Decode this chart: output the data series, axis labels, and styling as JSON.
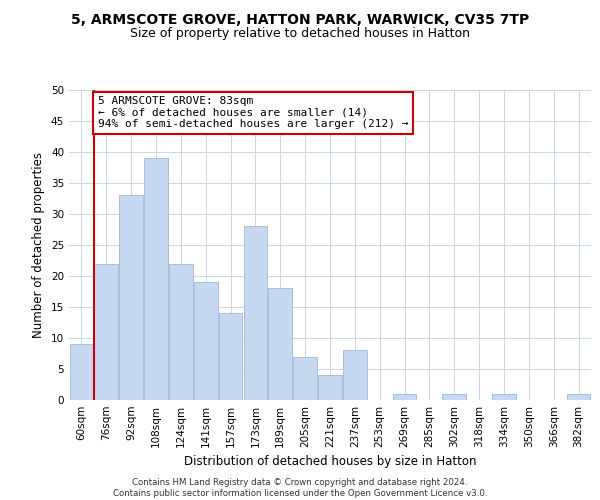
{
  "title": "5, ARMSCOTE GROVE, HATTON PARK, WARWICK, CV35 7TP",
  "subtitle": "Size of property relative to detached houses in Hatton",
  "xlabel": "Distribution of detached houses by size in Hatton",
  "ylabel": "Number of detached properties",
  "bar_labels": [
    "60sqm",
    "76sqm",
    "92sqm",
    "108sqm",
    "124sqm",
    "141sqm",
    "157sqm",
    "173sqm",
    "189sqm",
    "205sqm",
    "221sqm",
    "237sqm",
    "253sqm",
    "269sqm",
    "285sqm",
    "302sqm",
    "318sqm",
    "334sqm",
    "350sqm",
    "366sqm",
    "382sqm"
  ],
  "bar_values": [
    9,
    22,
    33,
    39,
    22,
    19,
    14,
    28,
    18,
    7,
    4,
    8,
    0,
    1,
    0,
    1,
    0,
    1,
    0,
    0,
    1
  ],
  "bar_color": "#c6d9f0",
  "bar_edge_color": "#a0b8d8",
  "ylim": [
    0,
    50
  ],
  "yticks": [
    0,
    5,
    10,
    15,
    20,
    25,
    30,
    35,
    40,
    45,
    50
  ],
  "property_line_x": 0.5,
  "property_line_color": "#cc0000",
  "annotation_text": "5 ARMSCOTE GROVE: 83sqm\n← 6% of detached houses are smaller (14)\n94% of semi-detached houses are larger (212) →",
  "annotation_box_color": "#ffffff",
  "annotation_box_edge_color": "#cc0000",
  "footer_text": "Contains HM Land Registry data © Crown copyright and database right 2024.\nContains public sector information licensed under the Open Government Licence v3.0.",
  "background_color": "#ffffff",
  "grid_color": "#c8d8e8",
  "title_fontsize": 10,
  "subtitle_fontsize": 9,
  "ylabel_fontsize": 8.5,
  "xlabel_fontsize": 8.5,
  "tick_fontsize": 7.5,
  "annotation_fontsize": 8,
  "footer_fontsize": 6.2
}
